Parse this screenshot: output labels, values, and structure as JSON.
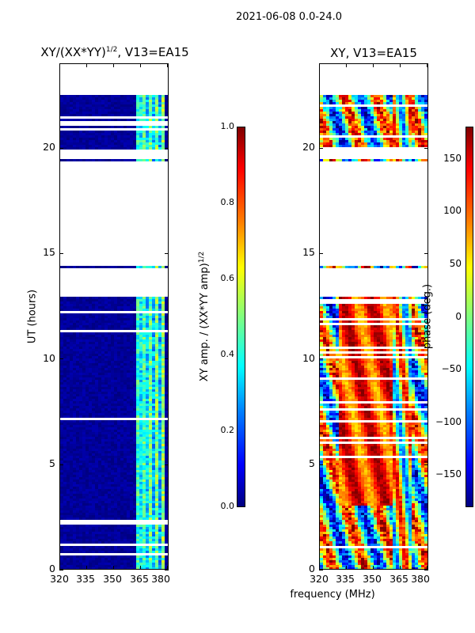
{
  "figure_title": "2021-06-08 0.0-24.0",
  "chart_data": [
    {
      "type": "heatmap",
      "title_prefix": "XY/(XX*YY)",
      "title_exponent": "1/2",
      "title_suffix": ", V13=EA15",
      "xlabel": "",
      "ylabel": "UT (hours)",
      "xlim": [
        320,
        381
      ],
      "ylim": [
        0,
        24
      ],
      "xticks": [
        "320",
        "335",
        "350",
        "365",
        "380"
      ],
      "yticks": [
        "0",
        "5",
        "10",
        "15",
        "20"
      ],
      "colorbar": {
        "label_prefix": "XY amp. / (XX*YY amp)",
        "label_exponent": "1/2",
        "range": [
          0,
          1
        ],
        "ticks": [
          "0.0",
          "0.2",
          "0.4",
          "0.6",
          "0.8",
          "1.0"
        ],
        "colormap": "jet"
      },
      "data_gaps_hours": [
        [
          12.9,
          14.3
        ],
        [
          14.45,
          19.4
        ],
        [
          19.45,
          19.9
        ],
        [
          22.5,
          24.0
        ]
      ],
      "active_band_mhz": [
        363,
        380
      ],
      "typical_value_background": 0.05,
      "typical_value_active": 0.4
    },
    {
      "type": "heatmap",
      "title": "XY, V13=EA15",
      "xlabel": "frequency (MHz)",
      "ylabel": "",
      "xlim": [
        320,
        381
      ],
      "ylim": [
        0,
        24
      ],
      "xticks": [
        "320",
        "335",
        "350",
        "365",
        "380"
      ],
      "yticks": [
        "0",
        "5",
        "10",
        "15",
        "20"
      ],
      "colorbar": {
        "label": "phase (deg.)",
        "range": [
          -180,
          180
        ],
        "ticks": [
          "150",
          "100",
          "50",
          "0",
          "−50",
          "−100",
          "−150"
        ],
        "colormap": "jet"
      },
      "data_gaps_hours": [
        [
          12.9,
          14.3
        ],
        [
          14.45,
          19.4
        ],
        [
          19.45,
          19.9
        ],
        [
          22.5,
          24.0
        ]
      ]
    }
  ]
}
